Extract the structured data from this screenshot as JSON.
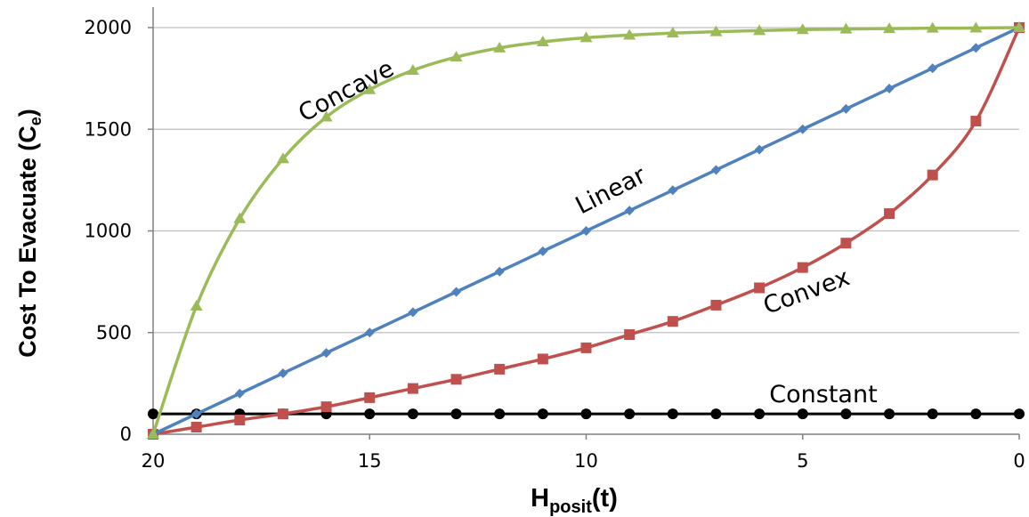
{
  "chart_data": {
    "type": "line",
    "xlabel": {
      "main": "H",
      "sub": "posit",
      "suffix": "(t)"
    },
    "ylabel": {
      "main": "Cost To Evacuate (C",
      "sub": "e",
      "suffix": ")"
    },
    "xlim": [
      20,
      0
    ],
    "ylim": [
      0,
      2000
    ],
    "x_ticks": [
      20,
      15,
      10,
      5,
      0
    ],
    "y_ticks": [
      0,
      500,
      1000,
      1500,
      2000
    ],
    "grid": "horizontal",
    "x": [
      20,
      19,
      18,
      17,
      16,
      15,
      14,
      13,
      12,
      11,
      10,
      9,
      8,
      7,
      6,
      5,
      4,
      3,
      2,
      1,
      0
    ],
    "series": [
      {
        "name": "Concave",
        "color": "#9BBB59",
        "marker": "triangle",
        "values": [
          0,
          630,
          1060,
          1355,
          1560,
          1695,
          1790,
          1855,
          1900,
          1930,
          1950,
          1963,
          1973,
          1980,
          1985,
          1990,
          1993,
          1995,
          1997,
          1998,
          2000
        ]
      },
      {
        "name": "Linear",
        "color": "#4F81BD",
        "marker": "diamond",
        "values": [
          0,
          100,
          200,
          300,
          400,
          500,
          600,
          700,
          800,
          900,
          1000,
          1100,
          1200,
          1300,
          1400,
          1500,
          1600,
          1700,
          1800,
          1900,
          2000
        ]
      },
      {
        "name": "Convex",
        "color": "#C0504D",
        "marker": "square",
        "values": [
          0,
          35,
          70,
          100,
          135,
          180,
          225,
          270,
          320,
          370,
          425,
          490,
          555,
          635,
          720,
          820,
          940,
          1085,
          1275,
          1540,
          2000
        ]
      },
      {
        "name": "Constant",
        "color": "#000000",
        "marker": "circle",
        "values": [
          100,
          100,
          100,
          100,
          100,
          100,
          100,
          100,
          100,
          100,
          100,
          100,
          100,
          100,
          100,
          100,
          100,
          100,
          100,
          100,
          100
        ]
      }
    ]
  }
}
